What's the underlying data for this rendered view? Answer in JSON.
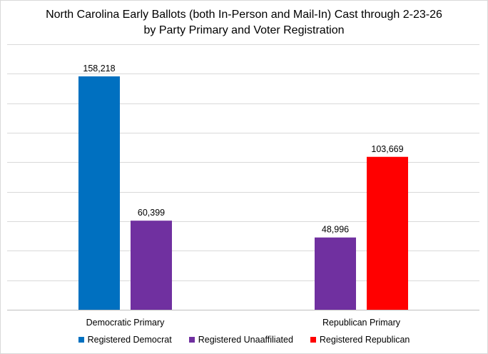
{
  "chart_data": {
    "type": "bar",
    "title": "North Carolina Early Ballots (both In-Person and Mail-In) Cast through 2-23-26",
    "subtitle": "by Party Primary and Voter Registration",
    "categories": [
      "Democratic Primary",
      "Republican Primary"
    ],
    "series": [
      {
        "name": "Registered Democrat",
        "color": "#0070c0",
        "values": [
          158218,
          null
        ],
        "labels": [
          "158,218",
          ""
        ]
      },
      {
        "name": "Registered Unaaffiliated",
        "color": "#7030a0",
        "values": [
          60399,
          48996
        ],
        "labels": [
          "60,399",
          "48,996"
        ]
      },
      {
        "name": "Registered Republican",
        "color": "#ff0000",
        "values": [
          null,
          103669
        ],
        "labels": [
          "",
          "103,669"
        ]
      }
    ],
    "ylim": [
      0,
      180000
    ],
    "y_gridlines": [
      20000,
      40000,
      60000,
      80000,
      100000,
      120000,
      140000,
      160000,
      180000
    ],
    "grid": true,
    "legend_position": "bottom"
  }
}
